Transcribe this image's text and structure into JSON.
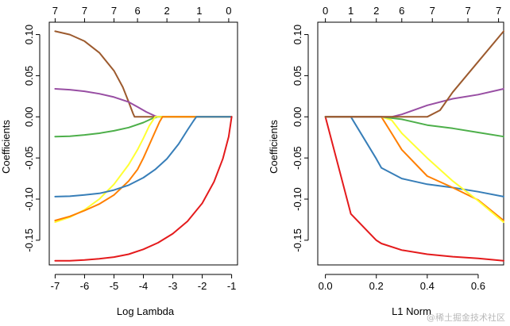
{
  "chart_data": [
    {
      "type": "line",
      "xlabel": "Log Lambda",
      "ylabel": "Coefficients",
      "xlim": [
        -7.2,
        -0.8
      ],
      "ylim": [
        -0.18,
        0.115
      ],
      "x_ticks": [
        -7,
        -6,
        -5,
        -4,
        -3,
        -2,
        -1
      ],
      "y_ticks": [
        -0.15,
        -0.1,
        -0.05,
        0.0,
        0.05,
        0.1
      ],
      "top_axis": {
        "positions": [
          -7,
          -6,
          -5,
          -4.2,
          -3.2,
          -2.1,
          -1.1
        ],
        "labels": [
          "7",
          "7",
          "7",
          "6",
          "2",
          "1",
          "0"
        ]
      },
      "series": [
        {
          "color": "#9c5a2e",
          "x": [
            -7,
            -6.5,
            -6,
            -5.5,
            -5,
            -4.7,
            -4.5,
            -4.35,
            -4.3,
            -1
          ],
          "y": [
            0.104,
            0.1,
            0.092,
            0.078,
            0.056,
            0.036,
            0.018,
            0.004,
            0,
            0
          ]
        },
        {
          "color": "#984ea3",
          "x": [
            -7,
            -6.5,
            -6,
            -5.5,
            -5,
            -4.5,
            -4.2,
            -3.9,
            -3.6,
            -3.5,
            -1
          ],
          "y": [
            0.034,
            0.033,
            0.031,
            0.028,
            0.024,
            0.018,
            0.012,
            0.006,
            0.001,
            0,
            0
          ]
        },
        {
          "color": "#4daf4a",
          "x": [
            -7,
            -6.5,
            -6,
            -5.5,
            -5,
            -4.5,
            -4,
            -3.7,
            -3.5,
            -1
          ],
          "y": [
            -0.024,
            -0.0235,
            -0.022,
            -0.02,
            -0.017,
            -0.013,
            -0.007,
            -0.002,
            0,
            0
          ]
        },
        {
          "color": "#ffff33",
          "x": [
            -7,
            -6.5,
            -6,
            -5.5,
            -5,
            -4.5,
            -4.2,
            -4,
            -3.8,
            -3.6,
            -1
          ],
          "y": [
            -0.128,
            -0.122,
            -0.113,
            -0.1,
            -0.082,
            -0.058,
            -0.04,
            -0.026,
            -0.011,
            0,
            0
          ]
        },
        {
          "color": "#ff7f00",
          "x": [
            -7,
            -6.5,
            -6,
            -5.5,
            -5,
            -4.5,
            -4.2,
            -4,
            -3.8,
            -3.6,
            -3.45,
            -3.35,
            -1
          ],
          "y": [
            -0.126,
            -0.121,
            -0.114,
            -0.106,
            -0.095,
            -0.078,
            -0.064,
            -0.05,
            -0.034,
            -0.018,
            -0.006,
            0,
            0
          ]
        },
        {
          "color": "#377eb8",
          "x": [
            -7,
            -6.5,
            -6,
            -5.5,
            -5,
            -4.5,
            -4,
            -3.6,
            -3.2,
            -2.8,
            -2.5,
            -2.3,
            -2.2,
            -1
          ],
          "y": [
            -0.097,
            -0.0965,
            -0.095,
            -0.093,
            -0.089,
            -0.083,
            -0.074,
            -0.064,
            -0.051,
            -0.033,
            -0.016,
            -0.005,
            0,
            0
          ]
        },
        {
          "color": "#e41a1c",
          "x": [
            -7,
            -6.5,
            -6,
            -5.5,
            -5,
            -4.5,
            -4,
            -3.5,
            -3,
            -2.5,
            -2,
            -1.6,
            -1.3,
            -1.1,
            -1
          ],
          "y": [
            -0.175,
            -0.175,
            -0.174,
            -0.1725,
            -0.1705,
            -0.167,
            -0.161,
            -0.153,
            -0.142,
            -0.127,
            -0.105,
            -0.079,
            -0.051,
            -0.024,
            0
          ]
        }
      ]
    },
    {
      "type": "line",
      "xlabel": "L1 Norm",
      "ylabel": "Coefficients",
      "xlim": [
        -0.03,
        0.7
      ],
      "ylim": [
        -0.18,
        0.115
      ],
      "x_ticks": [
        0.0,
        0.2,
        0.4,
        0.6
      ],
      "x_tick_labels": [
        "0.0",
        "0.2",
        "0.4",
        "0.6"
      ],
      "y_ticks": [
        -0.15,
        -0.1,
        -0.05,
        0.0,
        0.05,
        0.1
      ],
      "top_axis": {
        "positions": [
          0,
          0.1,
          0.2,
          0.3,
          0.42,
          0.56,
          0.68
        ],
        "labels": [
          "0",
          "1",
          "2",
          "6",
          "7",
          "7",
          "7"
        ]
      },
      "series": [
        {
          "color": "#e41a1c",
          "x": [
            0,
            0.1,
            0.2,
            0.22,
            0.3,
            0.4,
            0.5,
            0.6,
            0.7
          ],
          "y": [
            0,
            -0.118,
            -0.15,
            -0.154,
            -0.162,
            -0.167,
            -0.17,
            -0.172,
            -0.175
          ]
        },
        {
          "color": "#377eb8",
          "x": [
            0,
            0.1,
            0.2,
            0.22,
            0.3,
            0.4,
            0.5,
            0.6,
            0.7
          ],
          "y": [
            0,
            0,
            -0.051,
            -0.062,
            -0.075,
            -0.082,
            -0.086,
            -0.091,
            -0.097
          ]
        },
        {
          "color": "#ff7f00",
          "x": [
            0,
            0.22,
            0.26,
            0.3,
            0.4,
            0.5,
            0.6,
            0.7
          ],
          "y": [
            0,
            0,
            -0.02,
            -0.04,
            -0.072,
            -0.086,
            -0.101,
            -0.126
          ]
        },
        {
          "color": "#ffff33",
          "x": [
            0,
            0.22,
            0.26,
            0.3,
            0.4,
            0.5,
            0.6,
            0.7
          ],
          "y": [
            0,
            0,
            -0.004,
            -0.02,
            -0.05,
            -0.078,
            -0.102,
            -0.128
          ]
        },
        {
          "color": "#4daf4a",
          "x": [
            0,
            0.22,
            0.3,
            0.4,
            0.5,
            0.6,
            0.7
          ],
          "y": [
            0,
            0,
            -0.003,
            -0.01,
            -0.014,
            -0.019,
            -0.024
          ]
        },
        {
          "color": "#984ea3",
          "x": [
            0,
            0.26,
            0.3,
            0.4,
            0.5,
            0.6,
            0.7
          ],
          "y": [
            0,
            0,
            0.003,
            0.014,
            0.022,
            0.027,
            0.034
          ]
        },
        {
          "color": "#9c5a2e",
          "x": [
            0,
            0.4,
            0.45,
            0.5,
            0.6,
            0.7
          ],
          "y": [
            0,
            0,
            0.008,
            0.03,
            0.067,
            0.104
          ]
        }
      ]
    }
  ],
  "watermark": "@稀土掘金技术社区"
}
